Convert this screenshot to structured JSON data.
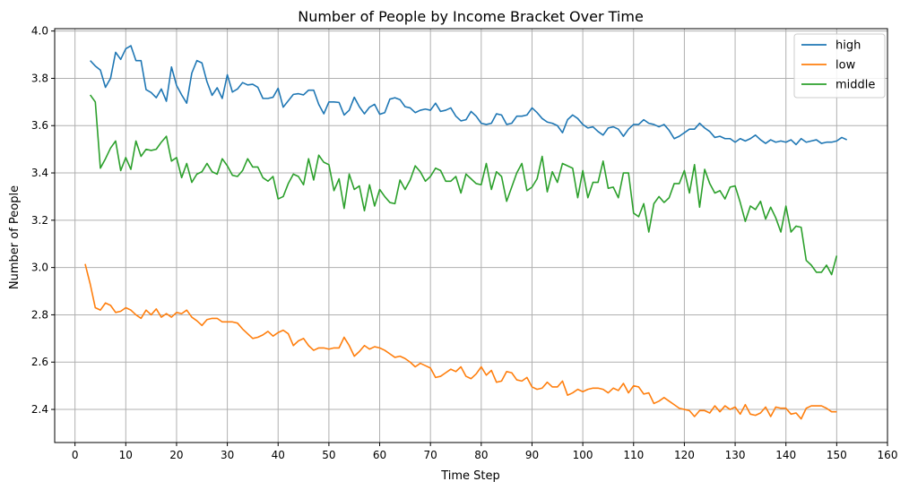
{
  "chart_data": {
    "type": "line",
    "title": "Number of People by Income Bracket Over Time",
    "xlabel": "Time Step",
    "ylabel": "Number of People",
    "xlim": [
      -4,
      160
    ],
    "ylim": [
      2.26,
      4.01
    ],
    "xticks": [
      0,
      10,
      20,
      30,
      40,
      50,
      60,
      70,
      80,
      90,
      100,
      110,
      120,
      130,
      140,
      150,
      160
    ],
    "yticks": [
      2.4,
      2.6,
      2.8,
      3.0,
      3.2,
      3.4,
      3.6,
      3.8,
      4.0
    ],
    "ytick_labels": [
      "2.4",
      "2.6",
      "2.8",
      "3.0",
      "3.2",
      "3.4",
      "3.6",
      "3.8",
      "4.0"
    ],
    "grid": true,
    "legend_position": "top-right",
    "series": [
      {
        "name": "high",
        "color": "#1f77b4",
        "x_start": 3,
        "values": [
          3.875,
          3.852,
          3.835,
          3.762,
          3.8,
          3.91,
          3.88,
          3.925,
          3.938,
          3.875,
          3.875,
          3.752,
          3.74,
          3.718,
          3.755,
          3.703,
          3.848,
          3.77,
          3.73,
          3.695,
          3.822,
          3.875,
          3.865,
          3.785,
          3.728,
          3.76,
          3.715,
          3.815,
          3.742,
          3.755,
          3.782,
          3.772,
          3.775,
          3.762,
          3.715,
          3.715,
          3.72,
          3.758,
          3.678,
          3.705,
          3.732,
          3.735,
          3.73,
          3.75,
          3.75,
          3.69,
          3.65,
          3.7,
          3.7,
          3.698,
          3.645,
          3.665,
          3.72,
          3.68,
          3.65,
          3.678,
          3.69,
          3.648,
          3.655,
          3.712,
          3.718,
          3.71,
          3.68,
          3.675,
          3.655,
          3.665,
          3.67,
          3.665,
          3.695,
          3.66,
          3.665,
          3.675,
          3.64,
          3.62,
          3.625,
          3.66,
          3.64,
          3.61,
          3.605,
          3.61,
          3.65,
          3.645,
          3.605,
          3.61,
          3.64,
          3.64,
          3.645,
          3.675,
          3.655,
          3.63,
          3.615,
          3.61,
          3.6,
          3.57,
          3.625,
          3.645,
          3.63,
          3.605,
          3.59,
          3.595,
          3.575,
          3.56,
          3.59,
          3.595,
          3.585,
          3.555,
          3.585,
          3.605,
          3.605,
          3.625,
          3.61,
          3.605,
          3.595,
          3.605,
          3.58,
          3.545,
          3.555,
          3.57,
          3.585,
          3.585,
          3.61,
          3.59,
          3.575,
          3.55,
          3.555,
          3.545,
          3.545,
          3.53,
          3.545,
          3.535,
          3.545,
          3.56,
          3.54,
          3.525,
          3.54,
          3.53,
          3.535,
          3.53,
          3.54,
          3.52,
          3.545,
          3.53,
          3.535,
          3.54,
          3.525,
          3.53,
          3.53,
          3.535,
          3.55,
          3.54
        ]
      },
      {
        "name": "low",
        "color": "#ff7f0e",
        "x_start": 2,
        "values": [
          3.015,
          2.93,
          2.83,
          2.82,
          2.85,
          2.84,
          2.81,
          2.815,
          2.83,
          2.82,
          2.8,
          2.785,
          2.82,
          2.8,
          2.825,
          2.79,
          2.805,
          2.79,
          2.81,
          2.805,
          2.82,
          2.79,
          2.775,
          2.755,
          2.78,
          2.785,
          2.785,
          2.77,
          2.77,
          2.77,
          2.765,
          2.74,
          2.72,
          2.7,
          2.705,
          2.715,
          2.73,
          2.71,
          2.725,
          2.735,
          2.72,
          2.67,
          2.69,
          2.7,
          2.67,
          2.65,
          2.66,
          2.66,
          2.655,
          2.66,
          2.66,
          2.705,
          2.67,
          2.625,
          2.645,
          2.67,
          2.655,
          2.665,
          2.66,
          2.65,
          2.635,
          2.62,
          2.625,
          2.615,
          2.6,
          2.58,
          2.595,
          2.585,
          2.575,
          2.535,
          2.54,
          2.555,
          2.57,
          2.56,
          2.58,
          2.54,
          2.53,
          2.55,
          2.58,
          2.545,
          2.565,
          2.515,
          2.52,
          2.56,
          2.555,
          2.525,
          2.52,
          2.535,
          2.495,
          2.485,
          2.49,
          2.515,
          2.495,
          2.495,
          2.52,
          2.46,
          2.47,
          2.485,
          2.475,
          2.485,
          2.49,
          2.49,
          2.485,
          2.47,
          2.49,
          2.48,
          2.51,
          2.47,
          2.5,
          2.495,
          2.465,
          2.47,
          2.425,
          2.435,
          2.45,
          2.435,
          2.42,
          2.405,
          2.4,
          2.395,
          2.37,
          2.395,
          2.395,
          2.385,
          2.415,
          2.39,
          2.415,
          2.4,
          2.41,
          2.38,
          2.42,
          2.38,
          2.375,
          2.385,
          2.41,
          2.37,
          2.41,
          2.405,
          2.405,
          2.38,
          2.385,
          2.36,
          2.405,
          2.415,
          2.415,
          2.415,
          2.405,
          2.39,
          2.39
        ]
      },
      {
        "name": "middle",
        "color": "#2ca02c",
        "x_start": 3,
        "values": [
          3.73,
          3.7,
          3.42,
          3.46,
          3.505,
          3.535,
          3.41,
          3.465,
          3.415,
          3.535,
          3.47,
          3.5,
          3.495,
          3.5,
          3.53,
          3.555,
          3.45,
          3.465,
          3.38,
          3.44,
          3.36,
          3.395,
          3.405,
          3.44,
          3.405,
          3.395,
          3.46,
          3.43,
          3.39,
          3.385,
          3.41,
          3.46,
          3.425,
          3.425,
          3.38,
          3.365,
          3.385,
          3.29,
          3.3,
          3.355,
          3.395,
          3.385,
          3.35,
          3.46,
          3.37,
          3.475,
          3.445,
          3.435,
          3.325,
          3.375,
          3.25,
          3.395,
          3.33,
          3.345,
          3.24,
          3.35,
          3.26,
          3.33,
          3.3,
          3.275,
          3.27,
          3.37,
          3.33,
          3.37,
          3.43,
          3.405,
          3.365,
          3.385,
          3.42,
          3.41,
          3.365,
          3.365,
          3.385,
          3.315,
          3.395,
          3.375,
          3.355,
          3.35,
          3.44,
          3.33,
          3.405,
          3.385,
          3.28,
          3.34,
          3.4,
          3.44,
          3.325,
          3.34,
          3.375,
          3.47,
          3.32,
          3.405,
          3.36,
          3.44,
          3.43,
          3.42,
          3.295,
          3.41,
          3.295,
          3.36,
          3.36,
          3.45,
          3.335,
          3.34,
          3.295,
          3.4,
          3.4,
          3.23,
          3.215,
          3.27,
          3.15,
          3.27,
          3.3,
          3.275,
          3.295,
          3.355,
          3.355,
          3.41,
          3.315,
          3.435,
          3.255,
          3.415,
          3.355,
          3.315,
          3.325,
          3.29,
          3.34,
          3.345,
          3.275,
          3.195,
          3.26,
          3.245,
          3.28,
          3.205,
          3.255,
          3.21,
          3.15,
          3.26,
          3.15,
          3.175,
          3.17,
          3.03,
          3.01,
          2.98,
          2.98,
          3.01,
          2.97,
          3.05
        ]
      }
    ]
  }
}
